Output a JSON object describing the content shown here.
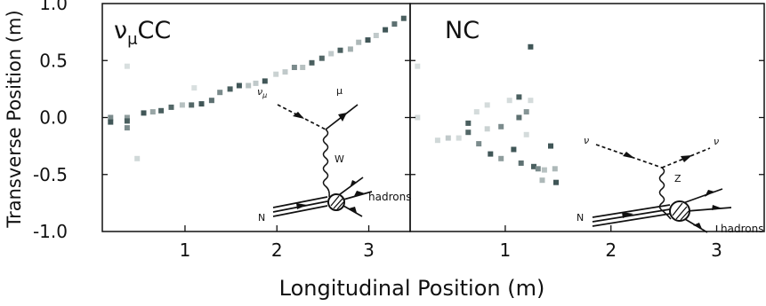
{
  "chart_data": {
    "type": "heatmap",
    "xlabel": "Longitudinal Position (m)",
    "ylabel": "Transverse Position (m)",
    "ylim": [
      -1.0,
      1.0
    ],
    "y_ticks": [
      "1.0",
      "0.5",
      "0.0",
      "-0.5",
      "-1.0"
    ],
    "y_tick_values": [
      1.0,
      0.5,
      0.0,
      -0.5,
      -1.0
    ],
    "x_ticks": [
      "1",
      "2",
      "3"
    ],
    "x_tick_values": [
      1,
      2,
      3
    ],
    "grid": false,
    "panels": [
      {
        "label": "CC",
        "label_prefix": "ν",
        "label_sub": "μ",
        "xlim": [
          0.1,
          3.45
        ],
        "hits": [
          {
            "x": 0.19,
            "y": 0.0,
            "v": 0.55
          },
          {
            "x": 0.19,
            "y": -0.04,
            "v": 0.85
          },
          {
            "x": 0.37,
            "y": 0.45,
            "v": 0.08
          },
          {
            "x": 0.37,
            "y": 0.0,
            "v": 0.45
          },
          {
            "x": 0.37,
            "y": -0.03,
            "v": 0.8
          },
          {
            "x": 0.37,
            "y": -0.09,
            "v": 0.55
          },
          {
            "x": 0.48,
            "y": -0.36,
            "v": 0.12
          },
          {
            "x": 0.55,
            "y": 0.04,
            "v": 0.85
          },
          {
            "x": 0.65,
            "y": 0.05,
            "v": 0.4
          },
          {
            "x": 0.74,
            "y": 0.06,
            "v": 0.8
          },
          {
            "x": 0.85,
            "y": 0.09,
            "v": 0.75
          },
          {
            "x": 0.97,
            "y": 0.11,
            "v": 0.25
          },
          {
            "x": 1.07,
            "y": 0.11,
            "v": 0.75
          },
          {
            "x": 1.1,
            "y": 0.26,
            "v": 0.08
          },
          {
            "x": 1.18,
            "y": 0.12,
            "v": 0.85
          },
          {
            "x": 1.29,
            "y": 0.15,
            "v": 0.7
          },
          {
            "x": 1.38,
            "y": 0.22,
            "v": 0.55
          },
          {
            "x": 1.49,
            "y": 0.25,
            "v": 0.8
          },
          {
            "x": 1.59,
            "y": 0.28,
            "v": 0.85
          },
          {
            "x": 1.69,
            "y": 0.28,
            "v": 0.25
          },
          {
            "x": 1.77,
            "y": 0.3,
            "v": 0.2
          },
          {
            "x": 1.87,
            "y": 0.32,
            "v": 0.85
          },
          {
            "x": 1.99,
            "y": 0.38,
            "v": 0.15
          },
          {
            "x": 2.09,
            "y": 0.4,
            "v": 0.2
          },
          {
            "x": 2.19,
            "y": 0.44,
            "v": 0.55
          },
          {
            "x": 2.28,
            "y": 0.44,
            "v": 0.25
          },
          {
            "x": 2.38,
            "y": 0.48,
            "v": 0.8
          },
          {
            "x": 2.49,
            "y": 0.52,
            "v": 0.75
          },
          {
            "x": 2.59,
            "y": 0.56,
            "v": 0.2
          },
          {
            "x": 2.69,
            "y": 0.59,
            "v": 0.8
          },
          {
            "x": 2.8,
            "y": 0.6,
            "v": 0.35
          },
          {
            "x": 2.89,
            "y": 0.66,
            "v": 0.3
          },
          {
            "x": 2.99,
            "y": 0.68,
            "v": 0.85
          },
          {
            "x": 3.08,
            "y": 0.72,
            "v": 0.2
          },
          {
            "x": 3.18,
            "y": 0.77,
            "v": 0.85
          },
          {
            "x": 3.28,
            "y": 0.82,
            "v": 0.7
          },
          {
            "x": 3.38,
            "y": 0.87,
            "v": 0.8
          }
        ]
      },
      {
        "label": "NC",
        "xlim": [
          0.1,
          3.45
        ],
        "hits": [
          {
            "x": 0.17,
            "y": 0.45,
            "v": 0.08
          },
          {
            "x": 0.17,
            "y": 0.0,
            "v": 0.1
          },
          {
            "x": 0.36,
            "y": -0.2,
            "v": 0.12
          },
          {
            "x": 0.46,
            "y": -0.18,
            "v": 0.2
          },
          {
            "x": 0.56,
            "y": -0.18,
            "v": 0.1
          },
          {
            "x": 0.65,
            "y": -0.05,
            "v": 0.8
          },
          {
            "x": 0.65,
            "y": -0.13,
            "v": 0.75
          },
          {
            "x": 0.73,
            "y": 0.05,
            "v": 0.1
          },
          {
            "x": 0.75,
            "y": -0.23,
            "v": 0.55
          },
          {
            "x": 0.83,
            "y": 0.11,
            "v": 0.1
          },
          {
            "x": 0.83,
            "y": -0.1,
            "v": 0.15
          },
          {
            "x": 0.86,
            "y": -0.32,
            "v": 0.85
          },
          {
            "x": 0.96,
            "y": -0.08,
            "v": 0.55
          },
          {
            "x": 0.96,
            "y": -0.36,
            "v": 0.45
          },
          {
            "x": 1.04,
            "y": 0.15,
            "v": 0.1
          },
          {
            "x": 1.08,
            "y": -0.28,
            "v": 0.85
          },
          {
            "x": 1.13,
            "y": 0.18,
            "v": 0.8
          },
          {
            "x": 1.13,
            "y": 0.0,
            "v": 0.7
          },
          {
            "x": 1.15,
            "y": -0.4,
            "v": 0.7
          },
          {
            "x": 1.2,
            "y": 0.05,
            "v": 0.5
          },
          {
            "x": 1.2,
            "y": -0.15,
            "v": 0.1
          },
          {
            "x": 1.24,
            "y": 0.62,
            "v": 0.85
          },
          {
            "x": 1.24,
            "y": 0.15,
            "v": 0.1
          },
          {
            "x": 1.27,
            "y": -0.43,
            "v": 0.8
          },
          {
            "x": 1.31,
            "y": -0.45,
            "v": 0.55
          },
          {
            "x": 1.35,
            "y": -0.55,
            "v": 0.3
          },
          {
            "x": 1.37,
            "y": -0.46,
            "v": 0.25
          },
          {
            "x": 1.43,
            "y": -0.25,
            "v": 0.85
          },
          {
            "x": 1.47,
            "y": -0.45,
            "v": 0.3
          },
          {
            "x": 1.48,
            "y": -0.57,
            "v": 0.85
          }
        ]
      }
    ],
    "diagrams": [
      {
        "in_particle": "ν",
        "in_particle_sub": "μ",
        "out_particle": "μ",
        "boson": "W",
        "target": "N",
        "products": "hadrons"
      },
      {
        "in_particle": "ν",
        "out_particle": "ν",
        "boson": "Z",
        "target": "N",
        "products": "hadrons"
      }
    ]
  }
}
